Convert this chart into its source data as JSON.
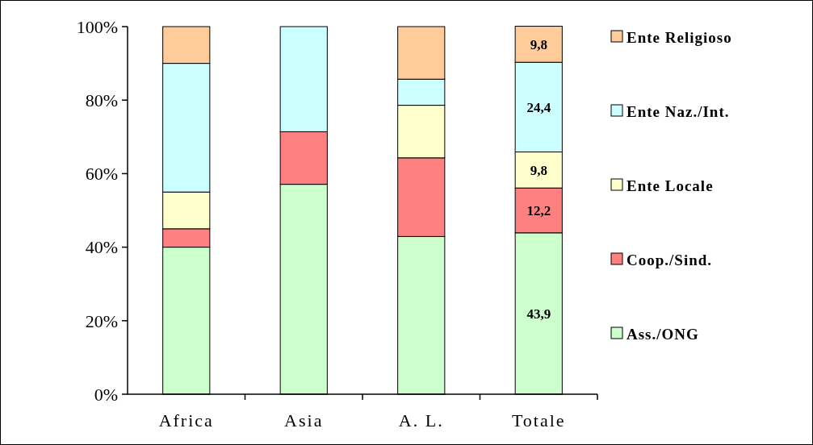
{
  "chart_data": {
    "type": "bar",
    "stacked": true,
    "categories": [
      "Africa",
      "Asia",
      "A. L.",
      "Totale"
    ],
    "series": [
      {
        "name": "Ass./ONG",
        "color": "#ccffcc",
        "values": [
          40,
          57.1,
          42.9,
          43.9
        ],
        "value_labels": [
          null,
          null,
          null,
          "43,9"
        ]
      },
      {
        "name": "Coop./Sind.",
        "color": "#ff8080",
        "values": [
          5,
          14.3,
          21.4,
          12.2
        ],
        "value_labels": [
          null,
          null,
          null,
          "12,2"
        ]
      },
      {
        "name": "Ente Locale",
        "color": "#ffffcc",
        "values": [
          10,
          0,
          14.3,
          9.8
        ],
        "value_labels": [
          null,
          null,
          null,
          "9,8"
        ]
      },
      {
        "name": "Ente Naz./Int.",
        "color": "#ccffff",
        "values": [
          35,
          28.6,
          7.1,
          24.4
        ],
        "value_labels": [
          null,
          null,
          null,
          "24,4"
        ]
      },
      {
        "name": "Ente Religioso",
        "color": "#ffcc99",
        "values": [
          10,
          0,
          14.3,
          9.8
        ],
        "value_labels": [
          null,
          null,
          null,
          "9,8"
        ]
      }
    ],
    "ylim": [
      0,
      100
    ],
    "yticks": [
      {
        "value": 0,
        "label": "0%"
      },
      {
        "value": 20,
        "label": "20%"
      },
      {
        "value": 40,
        "label": "40%"
      },
      {
        "value": 60,
        "label": "60%"
      },
      {
        "value": 80,
        "label": "80%"
      },
      {
        "value": 100,
        "label": "100%"
      }
    ],
    "grid": false,
    "legend": "right"
  }
}
